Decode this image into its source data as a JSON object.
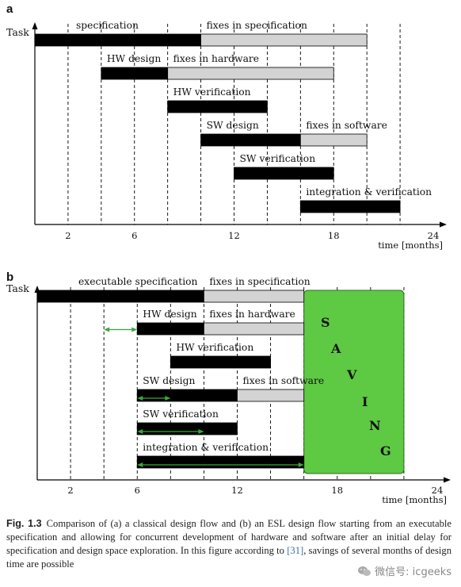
{
  "chart_data": [
    {
      "panel_label": "a",
      "type": "gantt",
      "ylabel": "Task",
      "xlabel": "time [months]",
      "xlim": [
        0,
        24
      ],
      "xticks": [
        2,
        6,
        12,
        18,
        24
      ],
      "gridlines": [
        2,
        4,
        6,
        8,
        10,
        12,
        14,
        16,
        18,
        20,
        22
      ],
      "rows": [
        {
          "bars": [
            {
              "label": "specification",
              "start": 0,
              "end": 10,
              "kind": "task"
            },
            {
              "label": "fixes in specification",
              "start": 10,
              "end": 20,
              "kind": "fix"
            }
          ]
        },
        {
          "bars": [
            {
              "label": "HW design",
              "start": 4,
              "end": 8,
              "kind": "task"
            },
            {
              "label": "fixes in hardware",
              "start": 8,
              "end": 18,
              "kind": "fix"
            }
          ]
        },
        {
          "bars": [
            {
              "label": "HW verification",
              "start": 8,
              "end": 14,
              "kind": "task"
            }
          ]
        },
        {
          "bars": [
            {
              "label": "SW design",
              "start": 10,
              "end": 16,
              "kind": "task"
            },
            {
              "label": "fixes in software",
              "start": 16,
              "end": 20,
              "kind": "fix"
            }
          ]
        },
        {
          "bars": [
            {
              "label": "SW verification",
              "start": 12,
              "end": 18,
              "kind": "task"
            }
          ]
        },
        {
          "bars": [
            {
              "label": "integration & verification",
              "start": 16,
              "end": 22,
              "kind": "task"
            }
          ]
        }
      ]
    },
    {
      "panel_label": "b",
      "type": "gantt",
      "ylabel": "Task",
      "xlabel": "time [months]",
      "xlim": [
        0,
        24
      ],
      "xticks": [
        2,
        6,
        12,
        18,
        24
      ],
      "gridlines": [
        2,
        4,
        6,
        8,
        10,
        12,
        14,
        16,
        18,
        20,
        22
      ],
      "rows": [
        {
          "bars": [
            {
              "label": "executable specification",
              "start": 0,
              "end": 10,
              "kind": "task"
            },
            {
              "label": "fixes in specification",
              "start": 10,
              "end": 16,
              "kind": "fix"
            }
          ]
        },
        {
          "bars": [
            {
              "label": "HW design",
              "start": 6,
              "end": 10,
              "kind": "task"
            },
            {
              "label": "fixes in hardware",
              "start": 10,
              "end": 16,
              "kind": "fix"
            }
          ],
          "arrow": {
            "start": 4,
            "end": 6
          }
        },
        {
          "bars": [
            {
              "label": "HW verification",
              "start": 8,
              "end": 14,
              "kind": "task"
            }
          ]
        },
        {
          "bars": [
            {
              "label": "SW design",
              "start": 6,
              "end": 12,
              "kind": "task"
            },
            {
              "label": "fixes in software",
              "start": 12,
              "end": 16,
              "kind": "fix"
            }
          ],
          "arrow": {
            "start": 6,
            "end": 8
          }
        },
        {
          "bars": [
            {
              "label": "SW verification",
              "start": 6,
              "end": 12,
              "kind": "task"
            }
          ],
          "arrow": {
            "start": 6,
            "end": 10
          }
        },
        {
          "bars": [
            {
              "label": "integration & verification",
              "start": 6,
              "end": 16,
              "kind": "task"
            }
          ],
          "arrow": {
            "start": 6,
            "end": 16
          }
        }
      ],
      "saving": {
        "start": 16,
        "end": 22,
        "letters": [
          "S",
          "A",
          "V",
          "I",
          "N",
          "G"
        ]
      }
    }
  ],
  "colors": {
    "task": "#000000",
    "fix": "#d3d3d3",
    "saving": "#5ec943",
    "arrow": "#3aa83a",
    "axis": "#000000"
  },
  "caption": {
    "label": "Fig. 1.3",
    "text_before_ref": "Comparison of (a) a classical design flow and (b) an ESL design flow starting from an executable specification and allowing for concurrent development of hardware and software after an initial delay for specification and design space exploration. In this figure according to ",
    "ref": "[31]",
    "text_after_ref": ", savings of several months of design time are possible"
  },
  "watermark": {
    "text": "微信号: icgeeks",
    "icon": "wechat-icon"
  }
}
